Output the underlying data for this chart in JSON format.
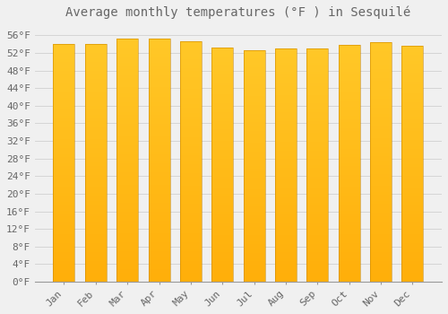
{
  "title": "Average monthly temperatures (°F ) in Sesquilé",
  "months": [
    "Jan",
    "Feb",
    "Mar",
    "Apr",
    "May",
    "Jun",
    "Jul",
    "Aug",
    "Sep",
    "Oct",
    "Nov",
    "Dec"
  ],
  "values": [
    54.0,
    54.1,
    55.2,
    55.2,
    54.7,
    53.2,
    52.7,
    53.1,
    53.1,
    53.8,
    54.5,
    53.6
  ],
  "bar_color": "#FFB733",
  "bar_color_top": "#FFCC55",
  "bar_color_bottom": "#FFA500",
  "background_color": "#f0f0f0",
  "plot_bg_color": "#f0f0f0",
  "grid_color": "#d0d0d0",
  "text_color": "#666666",
  "ylim": [
    0,
    58
  ],
  "yticks": [
    0,
    4,
    8,
    12,
    16,
    20,
    24,
    28,
    32,
    36,
    40,
    44,
    48,
    52,
    56
  ],
  "title_fontsize": 10,
  "tick_fontsize": 8
}
